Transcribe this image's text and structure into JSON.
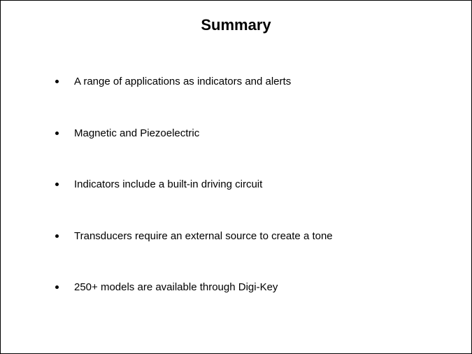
{
  "slide": {
    "title": "Summary",
    "bullets": [
      "A range of applications as indicators and alerts",
      "Magnetic and Piezoelectric",
      "Indicators include a built-in driving circuit",
      "Transducers require an external source to create a tone",
      "250+ models are available through Digi-Key"
    ],
    "styling": {
      "background_color": "#ffffff",
      "text_color": "#000000",
      "title_fontsize": 22,
      "title_fontweight": "bold",
      "body_fontsize": 15,
      "font_family": "Arial, Helvetica, sans-serif",
      "bullet_color": "#000000",
      "bullet_spacing": 54,
      "border_color": "#000000"
    }
  }
}
